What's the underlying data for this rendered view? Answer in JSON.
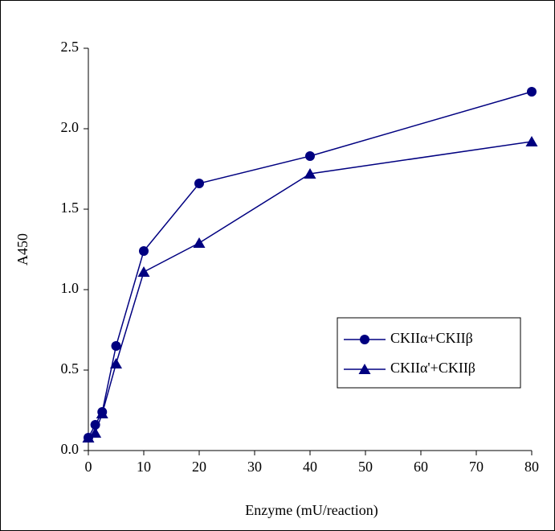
{
  "chart_data": {
    "type": "line",
    "xlabel": "Enzyme (mU/reaction)",
    "ylabel": "A450",
    "xlim": [
      0,
      80
    ],
    "xticks": [
      0,
      10,
      20,
      30,
      40,
      50,
      60,
      70,
      80
    ],
    "ylim": [
      0,
      2.5
    ],
    "yticks": [
      {
        "value": 0,
        "label": "0.0"
      },
      0.5,
      {
        "value": 1,
        "label": "1.0"
      },
      1.5,
      {
        "value": 2,
        "label": "2.0"
      },
      2.5
    ],
    "x": [
      0,
      1.25,
      2.5,
      5,
      10,
      20,
      40,
      80
    ],
    "legend": "right",
    "series": [
      {
        "name": "CKIIα+CKIIβ",
        "color": "#000080",
        "marker": "circle",
        "values": [
          0.08,
          0.16,
          0.24,
          0.65,
          1.24,
          1.66,
          1.83,
          2.23
        ]
      },
      {
        "name": "CKIIα'+CKIIβ",
        "color": "#000080",
        "marker": "triangle",
        "values": [
          0.08,
          0.11,
          0.23,
          0.54,
          1.11,
          1.29,
          1.72,
          1.92
        ]
      }
    ]
  }
}
